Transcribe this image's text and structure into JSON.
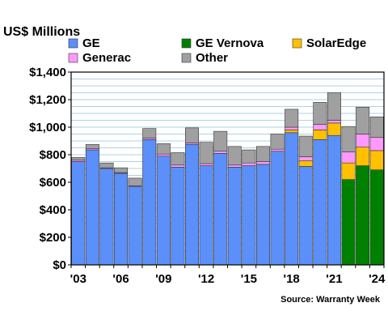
{
  "chart_data": {
    "type": "bar",
    "stacked": true,
    "title": "US$ Millions",
    "source": "Source: Warranty Week",
    "categories": [
      "2003",
      "2004",
      "2005",
      "2006",
      "2007",
      "2008",
      "2009",
      "2010",
      "2011",
      "2012",
      "2013",
      "2014",
      "2015",
      "2016",
      "2017",
      "2018",
      "2019",
      "2020",
      "2021",
      "2022",
      "2023",
      "2024"
    ],
    "x_tick_labels": [
      "'03",
      "'06",
      "'09",
      "'12",
      "'15",
      "'18",
      "'21",
      "'24"
    ],
    "x_tick_categories": [
      "2003",
      "2006",
      "2009",
      "2012",
      "2015",
      "2018",
      "2021",
      "2024"
    ],
    "y_tick_labels": [
      "$0",
      "$200",
      "$400",
      "$600",
      "$800",
      "$1,000",
      "$1,200",
      "$1,400"
    ],
    "y_tick_values": [
      0,
      200,
      400,
      600,
      800,
      1000,
      1200,
      1400
    ],
    "ylim": [
      0,
      1400
    ],
    "grid": true,
    "legend_position": "top",
    "series": [
      {
        "name": "GE",
        "color": "#5b8ff9",
        "values": [
          750,
          835,
          700,
          665,
          570,
          910,
          790,
          710,
          875,
          720,
          810,
          710,
          720,
          730,
          825,
          960,
          715,
          910,
          940,
          0,
          0,
          0
        ]
      },
      {
        "name": "GE Vernova",
        "color": "#008000",
        "values": [
          0,
          0,
          0,
          0,
          0,
          0,
          0,
          0,
          0,
          0,
          0,
          0,
          0,
          0,
          0,
          0,
          0,
          0,
          0,
          620,
          720,
          690
        ]
      },
      {
        "name": "SolarEdge",
        "color": "#ffc000",
        "values": [
          0,
          0,
          0,
          0,
          0,
          0,
          0,
          0,
          0,
          0,
          0,
          0,
          0,
          0,
          0,
          20,
          40,
          70,
          90,
          120,
          135,
          140
        ]
      },
      {
        "name": "Generac",
        "color": "#ff99ff",
        "values": [
          10,
          10,
          5,
          5,
          5,
          10,
          15,
          15,
          10,
          15,
          15,
          15,
          20,
          20,
          15,
          20,
          30,
          40,
          20,
          80,
          95,
          95
        ]
      },
      {
        "name": "Other",
        "color": "#a0a0a0",
        "values": [
          20,
          30,
          35,
          35,
          55,
          70,
          75,
          90,
          110,
          155,
          145,
          135,
          95,
          110,
          110,
          130,
          150,
          160,
          200,
          185,
          195,
          150
        ]
      }
    ]
  }
}
